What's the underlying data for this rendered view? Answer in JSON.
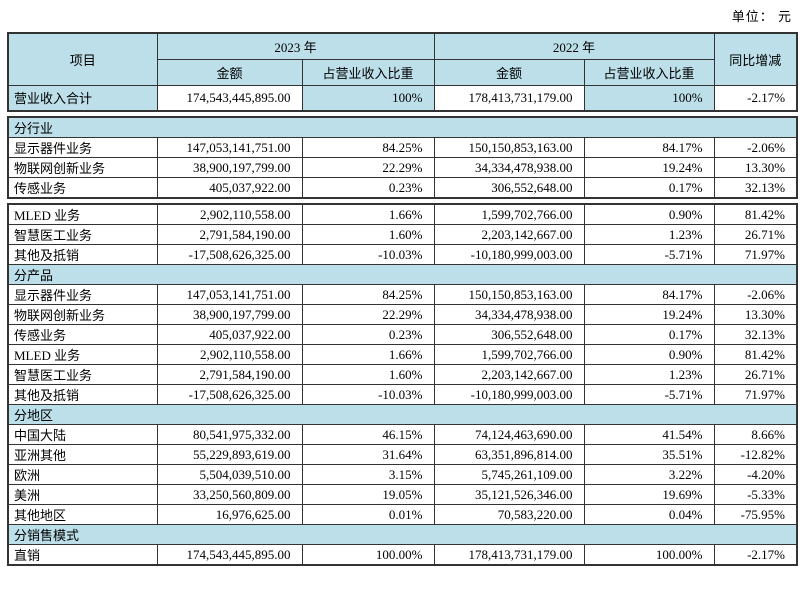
{
  "unit_label": "单位： 元",
  "colors": {
    "header_bg": "#bcdfe9",
    "border": "#333333",
    "text": "#000000"
  },
  "table": {
    "headers": {
      "item": "项目",
      "year_2023": "2023 年",
      "year_2022": "2022 年",
      "amount": "金额",
      "ratio": "占营业收入比重",
      "yoy": "同比增减"
    },
    "blocks": [
      {
        "rows": [
          {
            "type": "total",
            "label": "营业收入合计",
            "a23": "174,543,445,895.00",
            "r23": "100%",
            "a22": "178,413,731,179.00",
            "r22": "100%",
            "yoy": "-2.17%"
          }
        ]
      },
      {
        "rows": [
          {
            "type": "section",
            "label": "分行业"
          },
          {
            "type": "data",
            "label": "显示器件业务",
            "a23": "147,053,141,751.00",
            "r23": "84.25%",
            "a22": "150,150,853,163.00",
            "r22": "84.17%",
            "yoy": "-2.06%"
          },
          {
            "type": "data",
            "label": "物联网创新业务",
            "a23": "38,900,197,799.00",
            "r23": "22.29%",
            "a22": "34,334,478,938.00",
            "r22": "19.24%",
            "yoy": "13.30%"
          },
          {
            "type": "data",
            "label": "传感业务",
            "a23": "405,037,922.00",
            "r23": "0.23%",
            "a22": "306,552,648.00",
            "r22": "0.17%",
            "yoy": "32.13%"
          }
        ]
      },
      {
        "rows": [
          {
            "type": "data",
            "label": "MLED 业务",
            "a23": "2,902,110,558.00",
            "r23": "1.66%",
            "a22": "1,599,702,766.00",
            "r22": "0.90%",
            "yoy": "81.42%"
          },
          {
            "type": "data",
            "label": "智慧医工业务",
            "a23": "2,791,584,190.00",
            "r23": "1.60%",
            "a22": "2,203,142,667.00",
            "r22": "1.23%",
            "yoy": "26.71%"
          },
          {
            "type": "data",
            "label": "其他及抵销",
            "a23": "-17,508,626,325.00",
            "r23": "-10.03%",
            "a22": "-10,180,999,003.00",
            "r22": "-5.71%",
            "yoy": "71.97%"
          },
          {
            "type": "section",
            "label": "分产品"
          },
          {
            "type": "data",
            "label": "显示器件业务",
            "a23": "147,053,141,751.00",
            "r23": "84.25%",
            "a22": "150,150,853,163.00",
            "r22": "84.17%",
            "yoy": "-2.06%"
          },
          {
            "type": "data",
            "label": "物联网创新业务",
            "a23": "38,900,197,799.00",
            "r23": "22.29%",
            "a22": "34,334,478,938.00",
            "r22": "19.24%",
            "yoy": "13.30%"
          },
          {
            "type": "data",
            "label": "传感业务",
            "a23": "405,037,922.00",
            "r23": "0.23%",
            "a22": "306,552,648.00",
            "r22": "0.17%",
            "yoy": "32.13%"
          },
          {
            "type": "data",
            "label": "MLED 业务",
            "a23": "2,902,110,558.00",
            "r23": "1.66%",
            "a22": "1,599,702,766.00",
            "r22": "0.90%",
            "yoy": "81.42%"
          },
          {
            "type": "data",
            "label": "智慧医工业务",
            "a23": "2,791,584,190.00",
            "r23": "1.60%",
            "a22": "2,203,142,667.00",
            "r22": "1.23%",
            "yoy": "26.71%"
          },
          {
            "type": "data",
            "label": "其他及抵销",
            "a23": "-17,508,626,325.00",
            "r23": "-10.03%",
            "a22": "-10,180,999,003.00",
            "r22": "-5.71%",
            "yoy": "71.97%"
          },
          {
            "type": "section",
            "label": "分地区"
          },
          {
            "type": "data",
            "label": "中国大陆",
            "a23": "80,541,975,332.00",
            "r23": "46.15%",
            "a22": "74,124,463,690.00",
            "r22": "41.54%",
            "yoy": "8.66%"
          },
          {
            "type": "data",
            "label": "亚洲其他",
            "a23": "55,229,893,619.00",
            "r23": "31.64%",
            "a22": "63,351,896,814.00",
            "r22": "35.51%",
            "yoy": "-12.82%"
          },
          {
            "type": "data",
            "label": "欧洲",
            "a23": "5,504,039,510.00",
            "r23": "3.15%",
            "a22": "5,745,261,109.00",
            "r22": "3.22%",
            "yoy": "-4.20%"
          },
          {
            "type": "data",
            "label": "美洲",
            "a23": "33,250,560,809.00",
            "r23": "19.05%",
            "a22": "35,121,526,346.00",
            "r22": "19.69%",
            "yoy": "-5.33%"
          },
          {
            "type": "data",
            "label": "其他地区",
            "a23": "16,976,625.00",
            "r23": "0.01%",
            "a22": "70,583,220.00",
            "r22": "0.04%",
            "yoy": "-75.95%"
          },
          {
            "type": "section",
            "label": "分销售模式"
          },
          {
            "type": "data",
            "label": "直销",
            "a23": "174,543,445,895.00",
            "r23": "100.00%",
            "a22": "178,413,731,179.00",
            "r22": "100.00%",
            "yoy": "-2.17%"
          }
        ]
      }
    ]
  }
}
